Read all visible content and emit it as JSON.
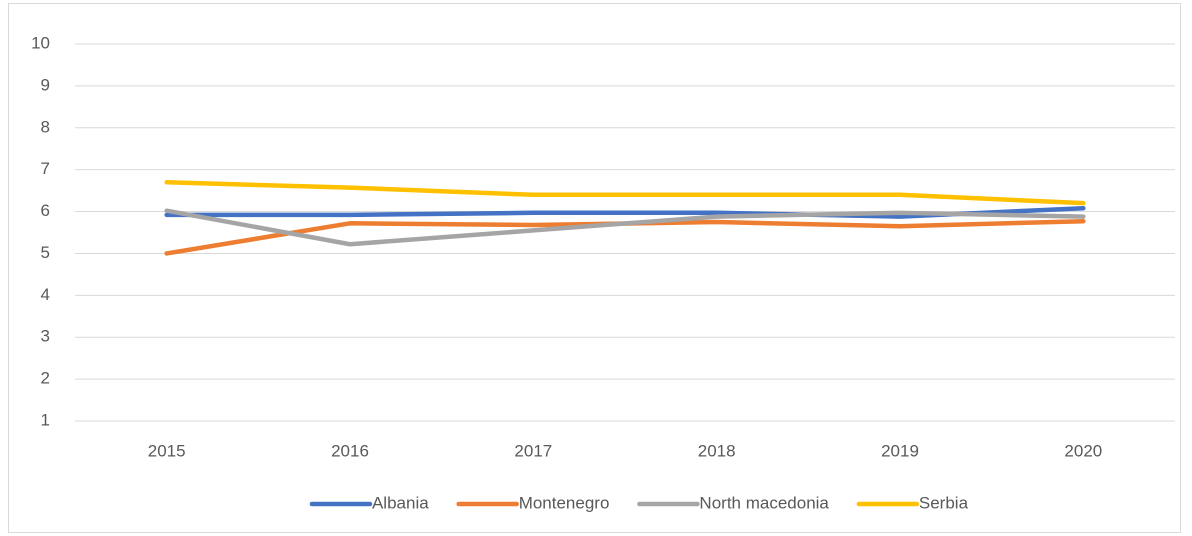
{
  "chart_data": {
    "type": "line",
    "categories": [
      "2015",
      "2016",
      "2017",
      "2018",
      "2019",
      "2020"
    ],
    "series": [
      {
        "name": "Albania",
        "color": "#4472c4",
        "values": [
          5.92,
          5.92,
          5.97,
          5.97,
          5.88,
          6.08
        ]
      },
      {
        "name": "Montenegro",
        "color": "#ed7d31",
        "values": [
          5.0,
          5.72,
          5.68,
          5.75,
          5.65,
          5.77
        ]
      },
      {
        "name": "North macedonia",
        "color": "#a5a5a5",
        "values": [
          6.02,
          5.22,
          5.55,
          5.88,
          5.97,
          5.88
        ]
      },
      {
        "name": "Serbia",
        "color": "#ffc000",
        "values": [
          6.7,
          6.57,
          6.4,
          6.4,
          6.4,
          6.2
        ]
      }
    ],
    "ylim": [
      1,
      10
    ],
    "yticks": [
      1,
      2,
      3,
      4,
      5,
      6,
      7,
      8,
      9,
      10
    ],
    "grid": true,
    "legend": "bottom"
  }
}
